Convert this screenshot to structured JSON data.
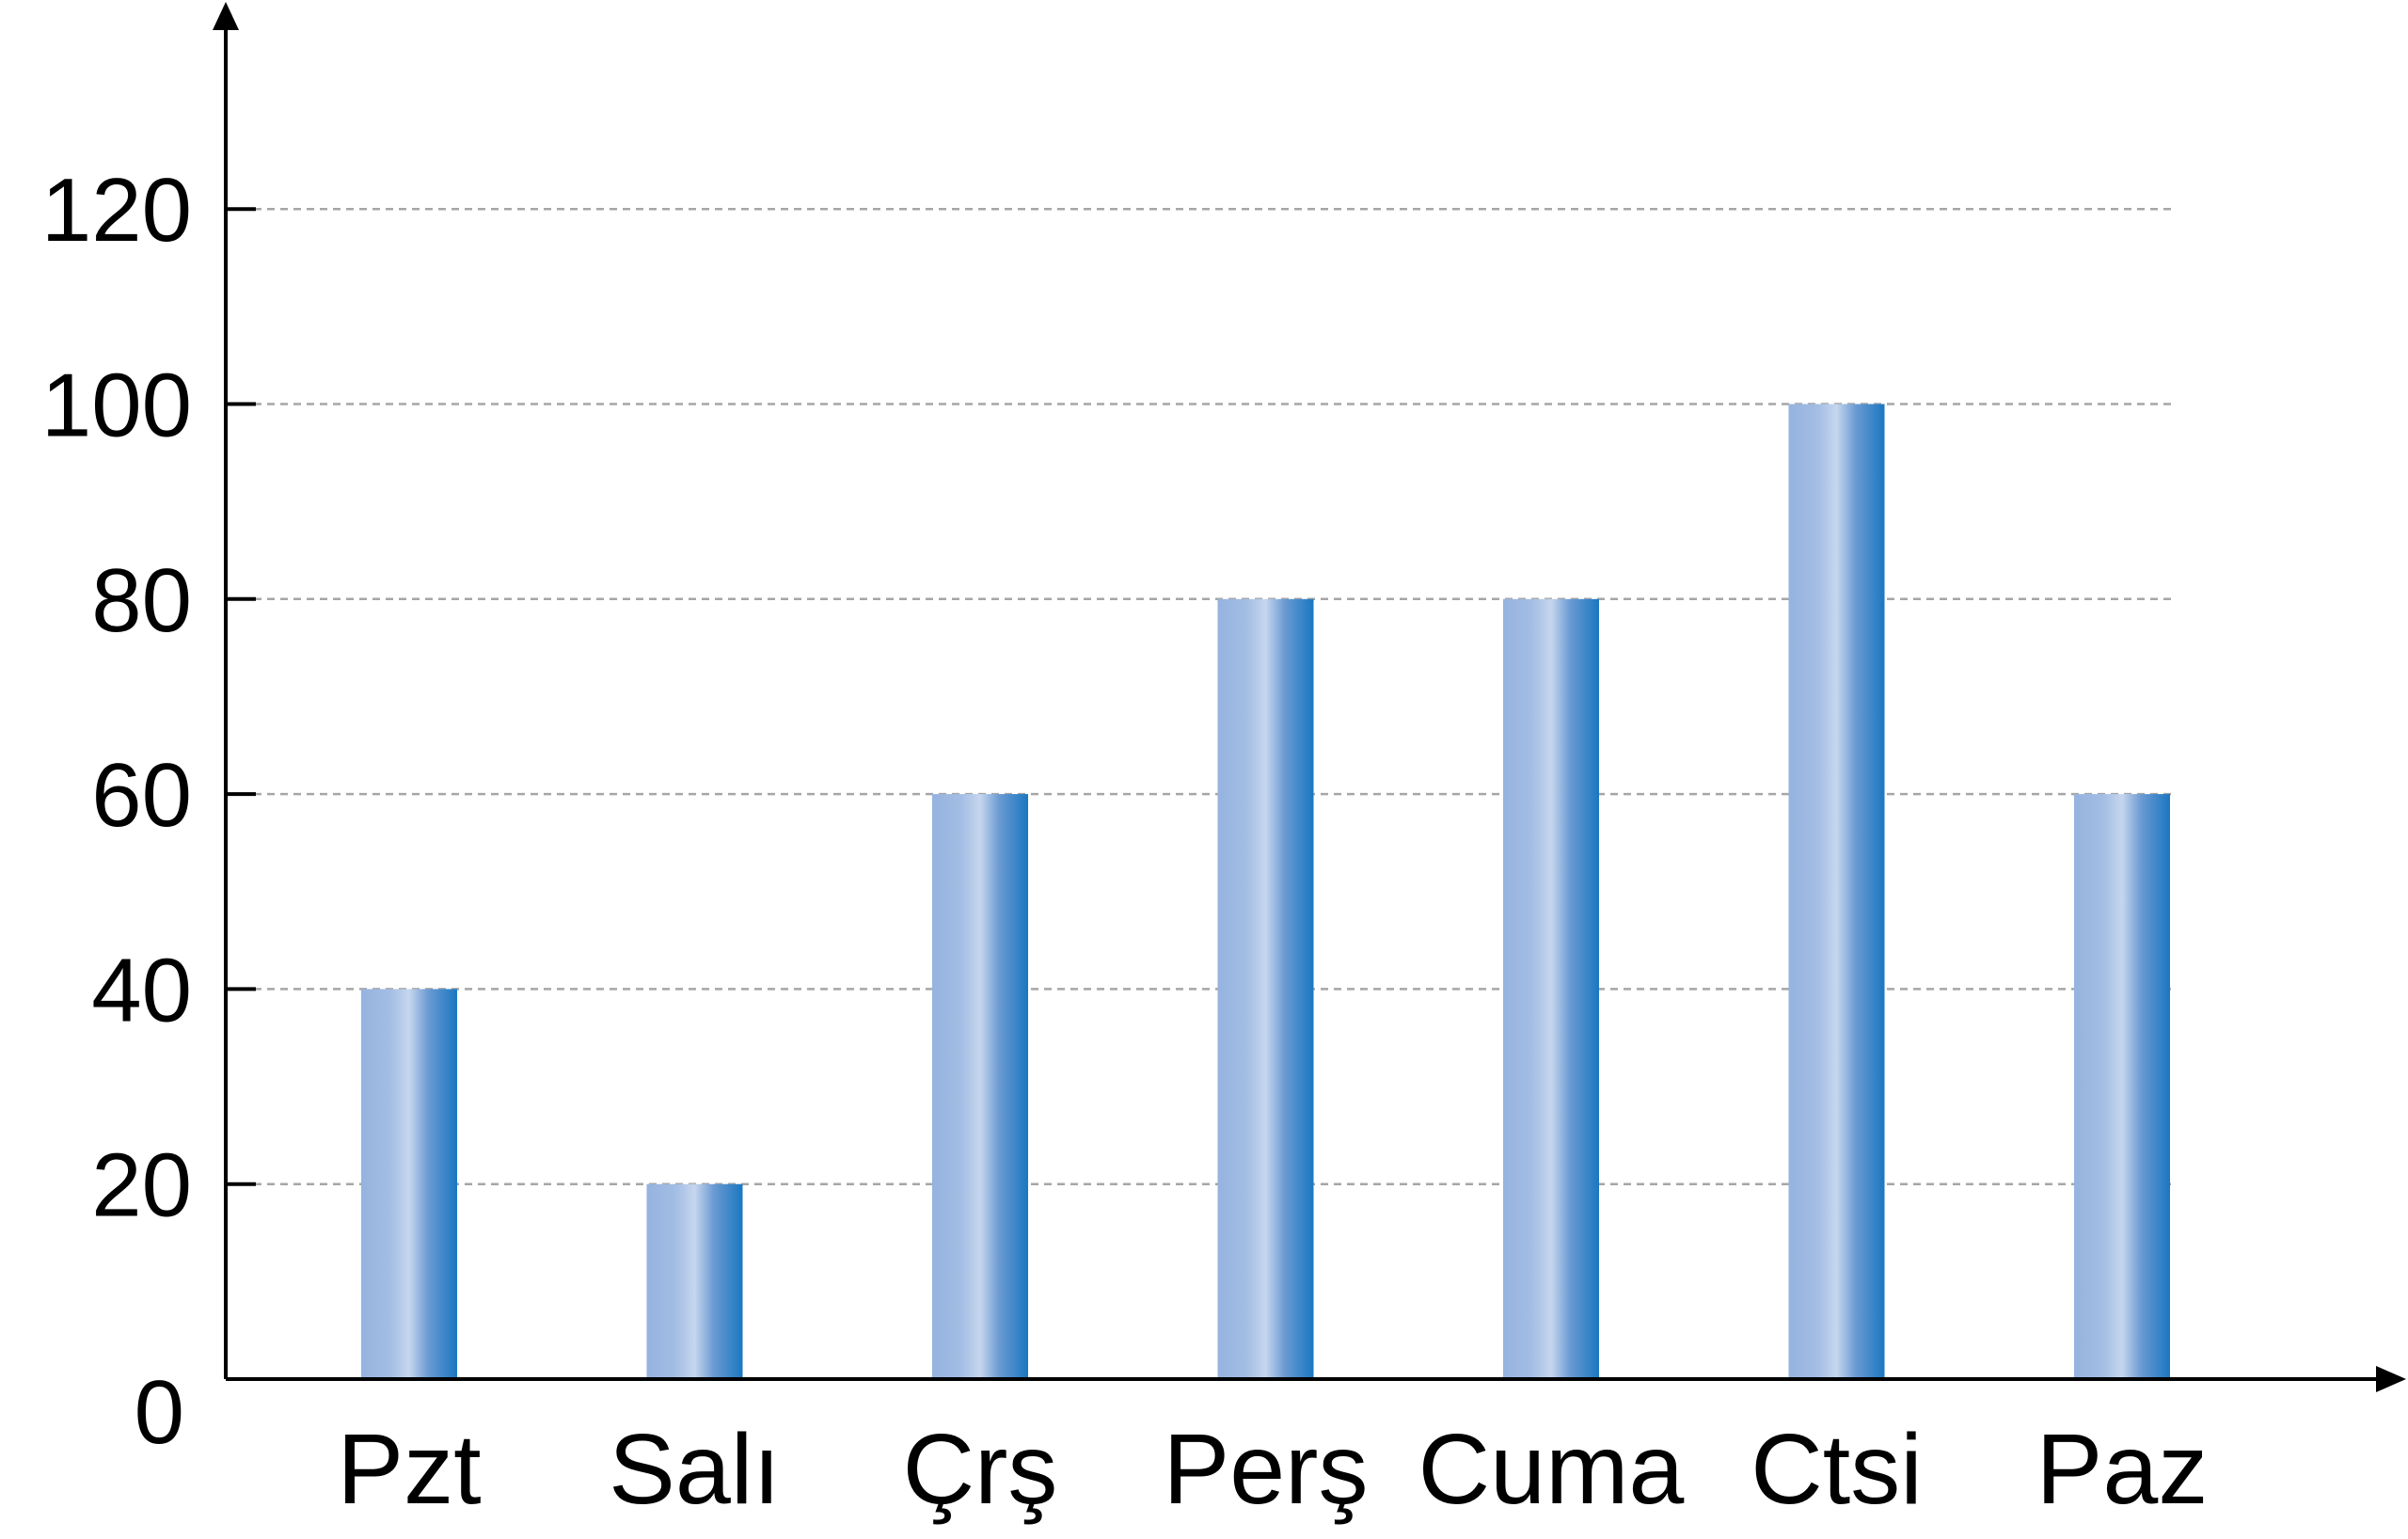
{
  "chart_data": {
    "type": "bar",
    "categories": [
      "Pzt",
      "Salı",
      "Çrş",
      "Perş",
      "Cuma",
      "Ctsi",
      "Paz"
    ],
    "values": [
      40,
      20,
      60,
      80,
      80,
      100,
      60
    ],
    "title": "",
    "xlabel": "",
    "ylabel": "",
    "ylim": [
      0,
      140
    ],
    "yticks": [
      "0",
      "20",
      "40",
      "60",
      "80",
      "100",
      "120"
    ],
    "grid": true,
    "bar_colors": {
      "left": "#95b3df",
      "highlight": "#c6d6ee",
      "right": "#1a77c1"
    },
    "grid_color": "#a6a6a6",
    "axis_color": "#000000"
  }
}
